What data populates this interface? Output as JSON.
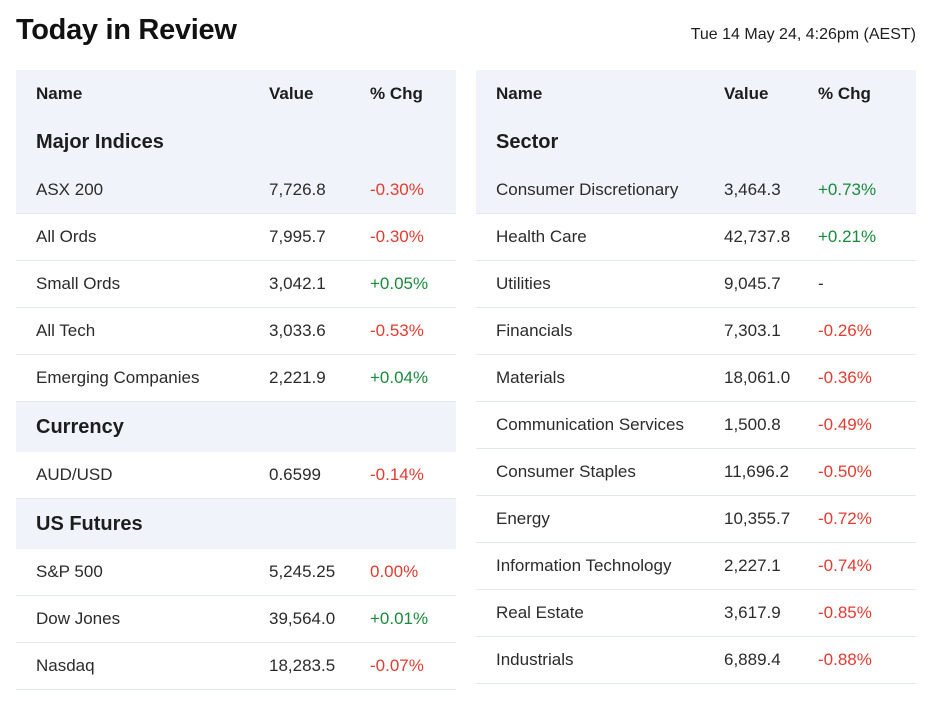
{
  "header": {
    "title": "Today in Review",
    "timestamp": "Tue 14 May 24, 4:26pm (AEST)"
  },
  "columns": {
    "name": "Name",
    "value": "Value",
    "change": "% Chg"
  },
  "left_panel": {
    "sections": [
      {
        "title": "Major Indices",
        "rows": [
          {
            "name": "ASX 200",
            "value": "7,726.8",
            "change": "-0.30%",
            "dir": "neg"
          },
          {
            "name": "All Ords",
            "value": "7,995.7",
            "change": "-0.30%",
            "dir": "neg"
          },
          {
            "name": "Small Ords",
            "value": "3,042.1",
            "change": "+0.05%",
            "dir": "pos"
          },
          {
            "name": "All Tech",
            "value": "3,033.6",
            "change": "-0.53%",
            "dir": "neg"
          },
          {
            "name": "Emerging Companies",
            "value": "2,221.9",
            "change": "+0.04%",
            "dir": "pos"
          }
        ]
      },
      {
        "title": "Currency",
        "rows": [
          {
            "name": "AUD/USD",
            "value": "0.6599",
            "change": "-0.14%",
            "dir": "neg"
          }
        ]
      },
      {
        "title": "US Futures",
        "rows": [
          {
            "name": "S&P 500",
            "value": "5,245.25",
            "change": "0.00%",
            "dir": "neg"
          },
          {
            "name": "Dow Jones",
            "value": "39,564.0",
            "change": "+0.01%",
            "dir": "pos"
          },
          {
            "name": "Nasdaq",
            "value": "18,283.5",
            "change": "-0.07%",
            "dir": "neg"
          }
        ]
      }
    ]
  },
  "right_panel": {
    "sections": [
      {
        "title": "Sector",
        "rows": [
          {
            "name": "Consumer Discretionary",
            "value": "3,464.3",
            "change": "+0.73%",
            "dir": "pos"
          },
          {
            "name": "Health Care",
            "value": "42,737.8",
            "change": "+0.21%",
            "dir": "pos"
          },
          {
            "name": "Utilities",
            "value": "9,045.7",
            "change": "-",
            "dir": "neu"
          },
          {
            "name": "Financials",
            "value": "7,303.1",
            "change": "-0.26%",
            "dir": "neg"
          },
          {
            "name": "Materials",
            "value": "18,061.0",
            "change": "-0.36%",
            "dir": "neg"
          },
          {
            "name": "Communication Services",
            "value": "1,500.8",
            "change": "-0.49%",
            "dir": "neg"
          },
          {
            "name": "Consumer Staples",
            "value": "11,696.2",
            "change": "-0.50%",
            "dir": "neg"
          },
          {
            "name": "Energy",
            "value": "10,355.7",
            "change": "-0.72%",
            "dir": "neg"
          },
          {
            "name": "Information Technology",
            "value": "2,227.1",
            "change": "-0.74%",
            "dir": "neg"
          },
          {
            "name": "Real Estate",
            "value": "3,617.9",
            "change": "-0.85%",
            "dir": "neg"
          },
          {
            "name": "Industrials",
            "value": "6,889.4",
            "change": "-0.88%",
            "dir": "neg"
          }
        ]
      }
    ]
  }
}
